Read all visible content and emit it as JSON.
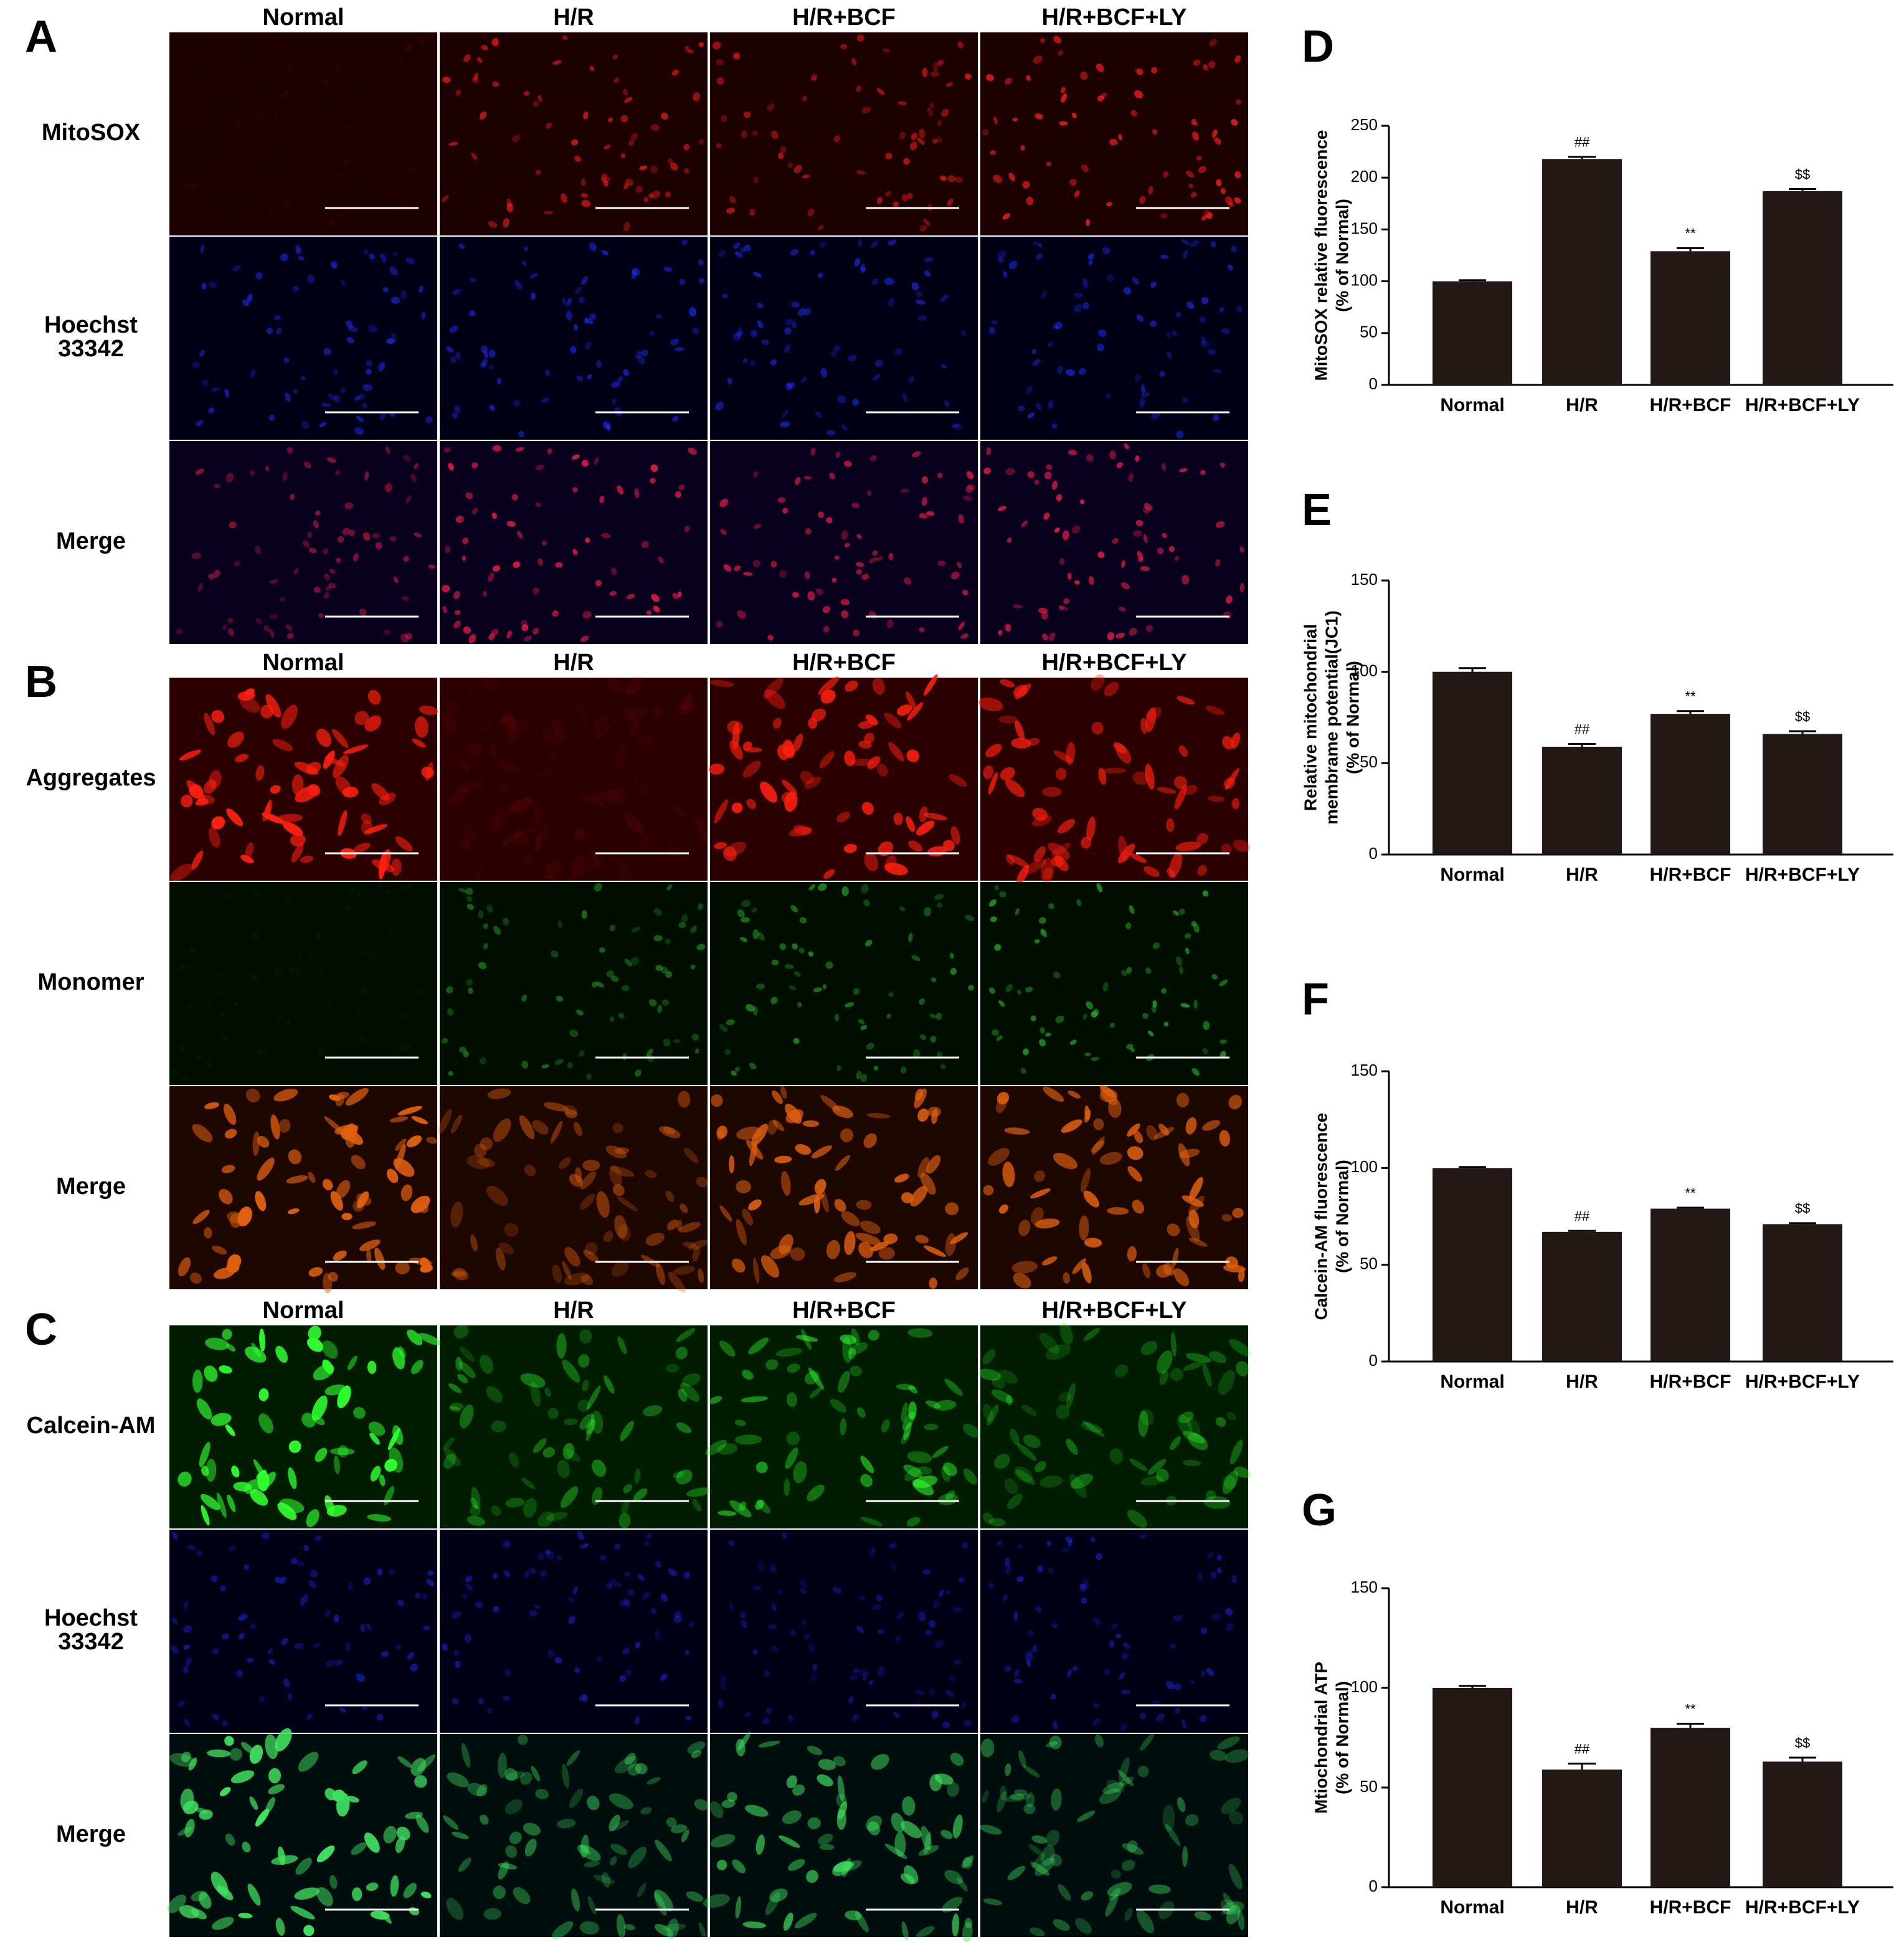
{
  "image_panels": [
    {
      "letter": "A",
      "columns": [
        "Normal",
        "H/R",
        "H/R+BCF",
        "H/R+BCF+LY"
      ],
      "rows": [
        [
          "MitoSOX"
        ],
        [
          "Hoechst",
          "33342"
        ],
        [
          "Merge"
        ]
      ]
    },
    {
      "letter": "B",
      "columns": [
        "Normal",
        "H/R",
        "H/R+BCF",
        "H/R+BCF+LY"
      ],
      "rows": [
        [
          "Aggregates"
        ],
        [
          "Monomer"
        ],
        [
          "Merge"
        ]
      ]
    },
    {
      "letter": "C",
      "columns": [
        "Normal",
        "H/R",
        "H/R+BCF",
        "H/R+BCF+LY"
      ],
      "rows": [
        [
          "Calcein-AM"
        ],
        [
          "Hoechst",
          "33342"
        ],
        [
          "Merge"
        ]
      ]
    }
  ],
  "chart_data": [
    {
      "type": "bar",
      "letter": "D",
      "ylabel": [
        "MitoSOX relative fluorescence",
        "(% of Normal)"
      ],
      "categories": [
        "Normal",
        "H/R",
        "H/R+BCF",
        "H/R+BCF+LY"
      ],
      "values": [
        100,
        218,
        129,
        187
      ],
      "errors": [
        1,
        2,
        3,
        2
      ],
      "annotations": [
        null,
        "##",
        "**",
        "$$"
      ],
      "color": "#231815",
      "ylim": [
        0,
        250
      ],
      "yticks": [
        0,
        50,
        100,
        150,
        200,
        250
      ]
    },
    {
      "type": "bar",
      "letter": "E",
      "ylabel": [
        "Relative mitochondrial",
        "membrame potential(JC1)",
        "(% of Normal)"
      ],
      "categories": [
        "Normal",
        "H/R",
        "H/R+BCF",
        "H/R+BCF+LY"
      ],
      "values": [
        100,
        59,
        77,
        66
      ],
      "errors": [
        2,
        1.5,
        1.5,
        1.5
      ],
      "annotations": [
        null,
        "##",
        "**",
        "$$"
      ],
      "color": "#231815",
      "ylim": [
        0,
        150
      ],
      "yticks": [
        0,
        50,
        100,
        150
      ]
    },
    {
      "type": "bar",
      "letter": "F",
      "ylabel": [
        "Calcein-AM fluorescence",
        "(% of Normal)"
      ],
      "categories": [
        "Normal",
        "H/R",
        "H/R+BCF",
        "H/R+BCF+LY"
      ],
      "values": [
        100,
        67,
        79,
        71
      ],
      "errors": [
        0.5,
        0.5,
        0.5,
        0.5
      ],
      "annotations": [
        null,
        "##",
        "**",
        "$$"
      ],
      "color": "#231815",
      "ylim": [
        0,
        150
      ],
      "yticks": [
        0,
        50,
        100,
        150
      ]
    },
    {
      "type": "bar",
      "letter": "G",
      "ylabel": [
        "Mtiochondrial ATP",
        "(% of Normal)"
      ],
      "categories": [
        "Normal",
        "H/R",
        "H/R+BCF",
        "H/R+BCF+LY"
      ],
      "values": [
        100,
        59,
        80,
        63
      ],
      "errors": [
        1,
        3,
        2,
        2
      ],
      "annotations": [
        null,
        "##",
        "**",
        "$$"
      ],
      "color": "#231815",
      "ylim": [
        0,
        150
      ],
      "yticks": [
        0,
        50,
        100,
        150
      ]
    }
  ]
}
